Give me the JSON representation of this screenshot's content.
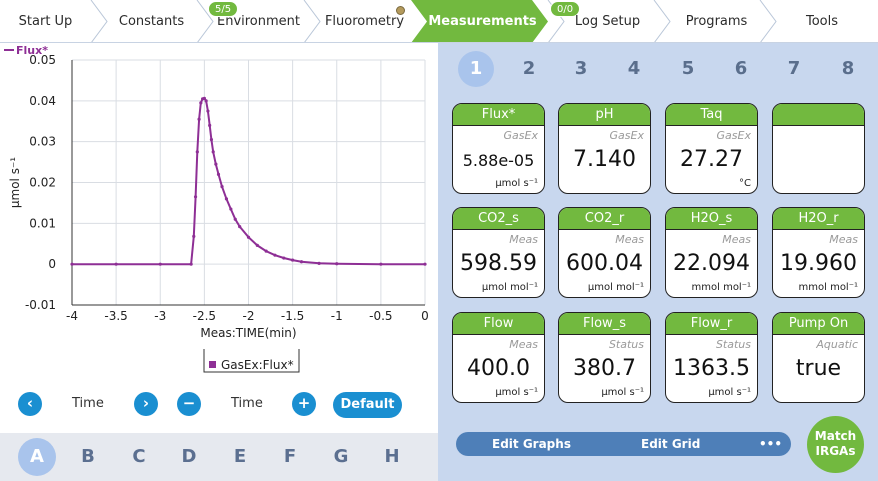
{
  "nav": {
    "tabs": [
      {
        "label": "Start Up"
      },
      {
        "label": "Constants"
      },
      {
        "label": "Environment",
        "badge": "5/5"
      },
      {
        "label": "Fluorometry"
      },
      {
        "label": "Measurements",
        "active": true
      },
      {
        "label": "Log Setup",
        "badge": "0/0"
      },
      {
        "label": "Programs"
      },
      {
        "label": "Tools"
      }
    ],
    "active_color": "#72b93f"
  },
  "chart_data": {
    "type": "line",
    "legend_top": "Flux*",
    "ylabel": "µmol s⁻¹",
    "xlabel": "Meas:TIME(min)",
    "series": [
      {
        "name": "GasEx:Flux*",
        "color": "#8e2f95",
        "x": [
          -4.0,
          -3.5,
          -3.0,
          -2.65,
          -2.62,
          -2.6,
          -2.58,
          -2.56,
          -2.54,
          -2.52,
          -2.5,
          -2.48,
          -2.46,
          -2.44,
          -2.42,
          -2.4,
          -2.37,
          -2.34,
          -2.3,
          -2.25,
          -2.2,
          -2.15,
          -2.1,
          -2.0,
          -1.9,
          -1.8,
          -1.7,
          -1.6,
          -1.5,
          -1.4,
          -1.2,
          -1.0,
          -0.5,
          0.0
        ],
        "y": [
          0.0,
          0.0,
          0.0,
          0.0,
          0.0068,
          0.0165,
          0.0275,
          0.0355,
          0.0395,
          0.0405,
          0.0406,
          0.04,
          0.0375,
          0.034,
          0.0305,
          0.0275,
          0.0245,
          0.022,
          0.019,
          0.016,
          0.0135,
          0.011,
          0.0092,
          0.0066,
          0.0046,
          0.0032,
          0.0022,
          0.0015,
          0.001,
          0.0006,
          0.0002,
          0.0001,
          0.0,
          0.0
        ]
      }
    ],
    "xlim": [
      -4,
      0
    ],
    "ylim": [
      -0.01,
      0.05
    ],
    "xticks": [
      "-4",
      "-3.5",
      "-3",
      "-2.5",
      "-2",
      "-1.5",
      "-1",
      "-0.5",
      "0"
    ],
    "yticks": [
      "0.05",
      "0.04",
      "0.03",
      "0.02",
      "0.01",
      "0",
      "-0.01"
    ],
    "grid": true,
    "legend_position": "bottom-center"
  },
  "graph_controls": {
    "x_label_left": "Time",
    "x_label_right": "Time",
    "prev_icon": "‹",
    "next_icon": "›",
    "minus_icon": "−",
    "plus_icon": "+",
    "default_label": "Default"
  },
  "graph_pages": [
    "A",
    "B",
    "C",
    "D",
    "E",
    "F",
    "G",
    "H"
  ],
  "grid_pages": [
    "1",
    "2",
    "3",
    "4",
    "5",
    "6",
    "7",
    "8"
  ],
  "tiles": [
    {
      "title": "Flux*",
      "source": "GasEx",
      "value": "5.88e-05",
      "unit": "µmol s⁻¹",
      "small": true
    },
    {
      "title": "pH",
      "source": "GasEx",
      "value": "7.140",
      "unit": ""
    },
    {
      "title": "Taq",
      "source": "GasEx",
      "value": "27.27",
      "unit": "°C"
    },
    {
      "title": "",
      "source": "",
      "value": "",
      "unit": ""
    },
    {
      "title": "CO2_s",
      "source": "Meas",
      "value": "598.59",
      "unit": "µmol mol⁻¹"
    },
    {
      "title": "CO2_r",
      "source": "Meas",
      "value": "600.04",
      "unit": "µmol mol⁻¹"
    },
    {
      "title": "H2O_s",
      "source": "Meas",
      "value": "22.094",
      "unit": "mmol mol⁻¹"
    },
    {
      "title": "H2O_r",
      "source": "Meas",
      "value": "19.960",
      "unit": "mmol mol⁻¹"
    },
    {
      "title": "Flow",
      "source": "Meas",
      "value": "400.0",
      "unit": "µmol s⁻¹"
    },
    {
      "title": "Flow_s",
      "source": "Status",
      "value": "380.7",
      "unit": "µmol s⁻¹"
    },
    {
      "title": "Flow_r",
      "source": "Status",
      "value": "1363.5",
      "unit": "µmol s⁻¹"
    },
    {
      "title": "Pump On",
      "source": "Aquatic",
      "value": "true",
      "unit": ""
    }
  ],
  "actions": {
    "edit_graphs": "Edit Graphs",
    "edit_grid": "Edit Grid",
    "more": "•••",
    "match_irgas_line1": "Match",
    "match_irgas_line2": "IRGAs"
  }
}
